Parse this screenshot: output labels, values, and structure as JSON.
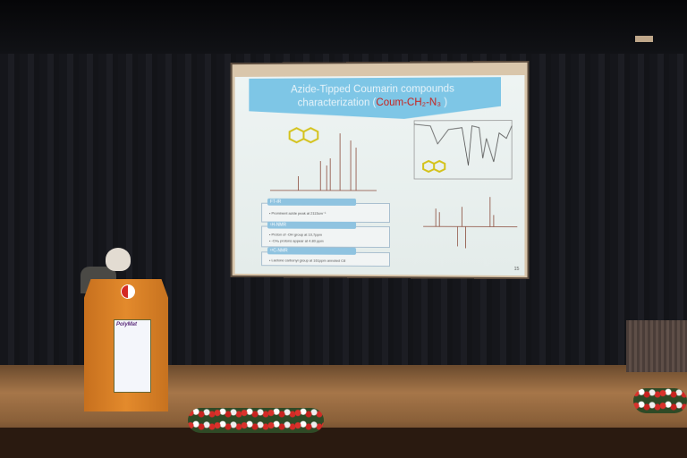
{
  "slide": {
    "title_line1": "Azide-Tipped Coumarin compounds",
    "title_line2": "characterization (",
    "title_compound": "Coum-CH₂-N₃",
    "title_close": " )",
    "sections": [
      {
        "heading": "FT-IR",
        "lines": [
          "• Prominent azide peak at 2115cm⁻¹"
        ]
      },
      {
        "heading": "¹H-NMR",
        "lines": [
          "• Proton of -OH group at 10,7ppm",
          "• -CH₂ protons appear at 4.80 ppm"
        ]
      },
      {
        "heading": "¹³C-NMR",
        "lines": [
          "• Lactone carbonyl group at 161ppm annoted C8"
        ]
      }
    ],
    "page_number": "15"
  },
  "podium": {
    "brand_logo_text": "PolyMat"
  },
  "colors": {
    "title_bar": "#7ec6e6",
    "compound_red": "#c8201c",
    "podium_orange": "#e38a2c",
    "molecule_yellow": "#d4c21a"
  }
}
